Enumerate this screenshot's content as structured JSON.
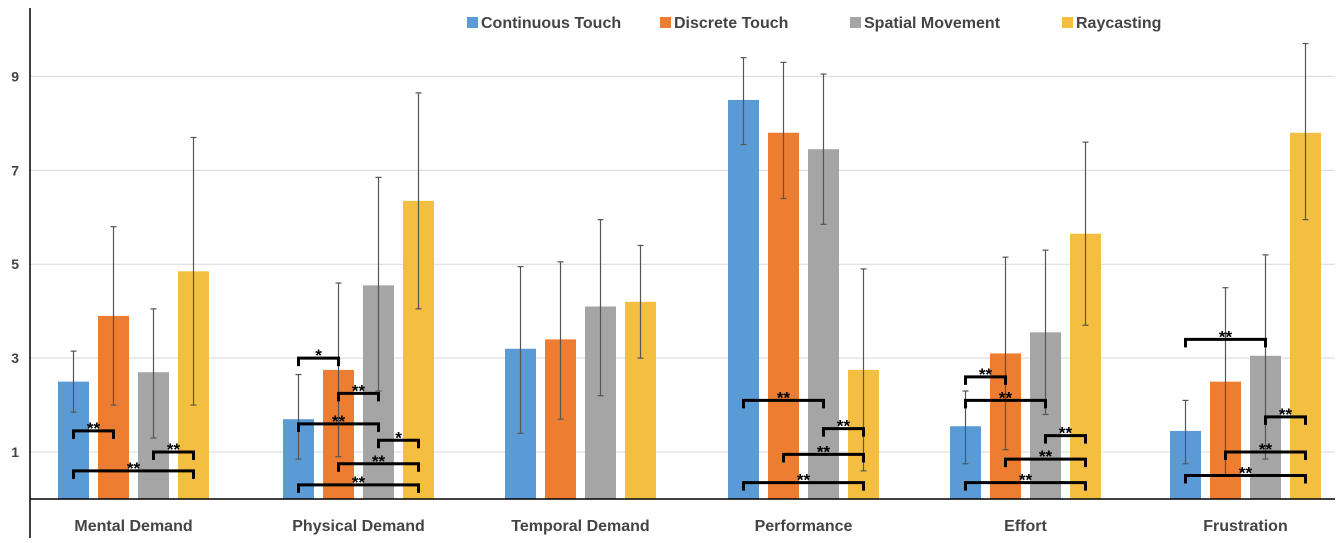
{
  "chart_data": {
    "type": "bar",
    "title": "",
    "xlabel": "",
    "ylabel": "",
    "ylim": [
      0,
      10.5
    ],
    "y_ticks": [
      1,
      3,
      5,
      7,
      9
    ],
    "grid": true,
    "legend_position": "top",
    "categories": [
      "Mental Demand",
      "Physical Demand",
      "Temporal Demand",
      "Performance",
      "Effort",
      "Frustration"
    ],
    "series": [
      {
        "name": "Continuous Touch",
        "color": "#5B9BD5",
        "values": [
          2.5,
          1.7,
          3.2,
          8.5,
          1.55,
          1.45
        ],
        "err_low": [
          1.85,
          0.85,
          1.4,
          7.55,
          0.75,
          0.75
        ],
        "err_high": [
          3.15,
          2.65,
          4.95,
          9.4,
          2.3,
          2.1
        ]
      },
      {
        "name": "Discrete Touch",
        "color": "#ED7D31",
        "values": [
          3.9,
          2.75,
          3.4,
          7.8,
          3.1,
          2.5
        ],
        "err_low": [
          2.0,
          0.9,
          1.7,
          6.4,
          1.05,
          0.5
        ],
        "err_high": [
          5.8,
          4.6,
          5.05,
          9.3,
          5.15,
          4.5
        ]
      },
      {
        "name": "Spatial Movement",
        "color": "#A5A5A5",
        "values": [
          2.7,
          4.55,
          4.1,
          7.45,
          3.55,
          3.05
        ],
        "err_low": [
          1.3,
          2.3,
          2.2,
          5.85,
          1.8,
          0.85
        ],
        "err_high": [
          4.05,
          6.85,
          5.95,
          9.05,
          5.3,
          5.2
        ]
      },
      {
        "name": "Raycasting",
        "color": "#F4BE41",
        "values": [
          4.85,
          6.35,
          4.2,
          2.75,
          5.65,
          7.8
        ],
        "err_low": [
          2.0,
          4.05,
          3.0,
          0.6,
          3.7,
          5.95
        ],
        "err_high": [
          7.7,
          8.65,
          5.4,
          4.9,
          7.6,
          9.7
        ]
      }
    ],
    "significance": [
      {
        "category": 0,
        "from": 0,
        "to": 1,
        "y": 1.45,
        "label": "**"
      },
      {
        "category": 0,
        "from": 2,
        "to": 3,
        "y": 1.0,
        "label": "**"
      },
      {
        "category": 0,
        "from": 0,
        "to": 3,
        "y": 0.6,
        "label": "**"
      },
      {
        "category": 1,
        "from": 0,
        "to": 1,
        "y": 3.0,
        "label": "*"
      },
      {
        "category": 1,
        "from": 1,
        "to": 2,
        "y": 2.25,
        "label": "**"
      },
      {
        "category": 1,
        "from": 0,
        "to": 2,
        "y": 1.6,
        "label": "**"
      },
      {
        "category": 1,
        "from": 2,
        "to": 3,
        "y": 1.25,
        "label": "*"
      },
      {
        "category": 1,
        "from": 1,
        "to": 3,
        "y": 0.75,
        "label": "**"
      },
      {
        "category": 1,
        "from": 0,
        "to": 3,
        "y": 0.3,
        "label": "**"
      },
      {
        "category": 3,
        "from": 0,
        "to": 2,
        "y": 2.1,
        "label": "**"
      },
      {
        "category": 3,
        "from": 2,
        "to": 3,
        "y": 1.5,
        "label": "**"
      },
      {
        "category": 3,
        "from": 1,
        "to": 3,
        "y": 0.95,
        "label": "**"
      },
      {
        "category": 3,
        "from": 0,
        "to": 3,
        "y": 0.35,
        "label": "**"
      },
      {
        "category": 4,
        "from": 0,
        "to": 1,
        "y": 2.6,
        "label": "**"
      },
      {
        "category": 4,
        "from": 0,
        "to": 2,
        "y": 2.1,
        "label": "**"
      },
      {
        "category": 4,
        "from": 2,
        "to": 3,
        "y": 1.35,
        "label": "**"
      },
      {
        "category": 4,
        "from": 1,
        "to": 3,
        "y": 0.85,
        "label": "**"
      },
      {
        "category": 4,
        "from": 0,
        "to": 3,
        "y": 0.35,
        "label": "**"
      },
      {
        "category": 5,
        "from": 0,
        "to": 2,
        "y": 3.4,
        "label": "**"
      },
      {
        "category": 5,
        "from": 2,
        "to": 3,
        "y": 1.75,
        "label": "**"
      },
      {
        "category": 5,
        "from": 1,
        "to": 3,
        "y": 1.0,
        "label": "**"
      },
      {
        "category": 5,
        "from": 0,
        "to": 3,
        "y": 0.5,
        "label": "**"
      }
    ]
  }
}
